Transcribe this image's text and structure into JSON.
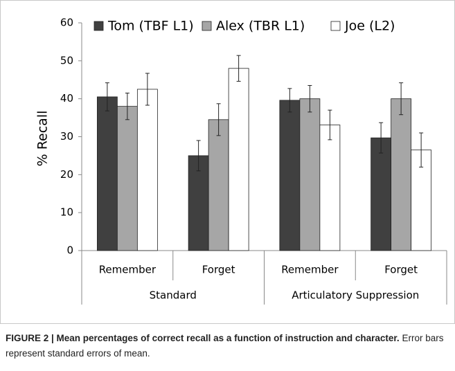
{
  "chart_data": {
    "type": "bar",
    "ylabel": "% Recall",
    "groups": [
      {
        "name": "Standard",
        "categories": [
          "Remember",
          "Forget"
        ]
      },
      {
        "name": "Articulatory Suppression",
        "categories": [
          "Remember",
          "Forget"
        ]
      }
    ],
    "series": [
      {
        "name": "Tom (TBF L1)",
        "color": "#404040",
        "values": [
          40.5,
          25,
          39.6,
          29.7
        ],
        "errors": [
          3.7,
          4,
          3.1,
          4
        ]
      },
      {
        "name": "Alex (TBR L1)",
        "color": "#a6a6a6",
        "values": [
          38,
          34.5,
          40,
          40
        ],
        "errors": [
          3.5,
          4.2,
          3.5,
          4.2
        ]
      },
      {
        "name": "Joe (L2)",
        "color": "#ffffff",
        "values": [
          42.5,
          48,
          33.1,
          26.5
        ],
        "errors": [
          4.2,
          3.4,
          3.9,
          4.5
        ]
      }
    ],
    "ylim": [
      0,
      60
    ],
    "yticks": [
      0,
      10,
      20,
      30,
      40,
      50,
      60
    ],
    "legend": "top",
    "caption": {
      "bold": "FIGURE 2 | Mean percentages of correct recall as a function of instruction and character.",
      "text": "Error bars represent standard errors of mean."
    }
  }
}
